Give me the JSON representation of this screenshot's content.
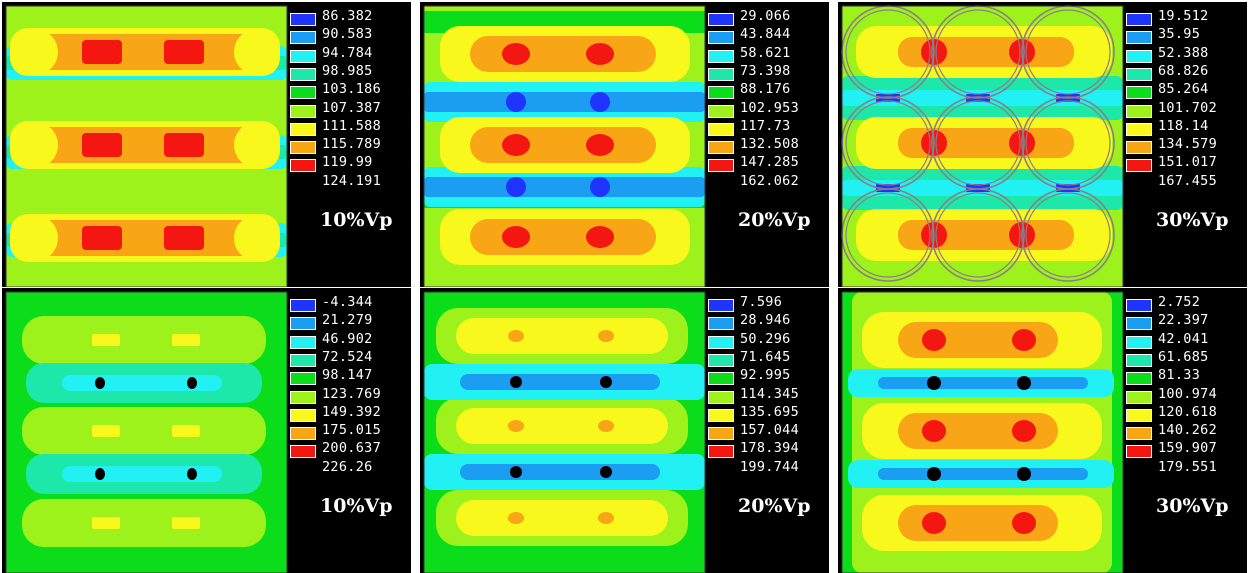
{
  "colors": [
    "#1f34ff",
    "#1b9df2",
    "#21f1f2",
    "#1ee8a9",
    "#0cdd1a",
    "#9ef21b",
    "#f8f81c",
    "#f8a616",
    "#f41610"
  ],
  "panels": [
    {
      "label": "10%Vp",
      "style": "a",
      "legend": [
        "86.382",
        "90.583",
        "94.784",
        "98.985",
        "103.186",
        "107.387",
        "111.588",
        "115.789",
        "119.99",
        "124.191"
      ]
    },
    {
      "label": "20%Vp",
      "style": "b",
      "legend": [
        "29.066",
        "43.844",
        "58.621",
        "73.398",
        "88.176",
        "102.953",
        "117.73",
        "132.508",
        "147.285",
        "162.062"
      ]
    },
    {
      "label": "30%Vp",
      "style": "c",
      "legend": [
        "19.512",
        "35.95",
        "52.388",
        "68.826",
        "85.264",
        "101.702",
        "118.14",
        "134.579",
        "151.017",
        "167.455"
      ]
    },
    {
      "label": "10%Vp",
      "style": "d",
      "legend": [
        "-4.344",
        "21.279",
        "46.902",
        "72.524",
        "98.147",
        "123.769",
        "149.392",
        "175.015",
        "200.637",
        "226.26"
      ]
    },
    {
      "label": "20%Vp",
      "style": "e",
      "legend": [
        "7.596",
        "28.946",
        "50.296",
        "71.645",
        "92.995",
        "114.345",
        "135.695",
        "157.044",
        "178.394",
        "199.744"
      ]
    },
    {
      "label": "30%Vp",
      "style": "f",
      "legend": [
        "2.752",
        "22.397",
        "42.041",
        "61.685",
        "81.33",
        "100.974",
        "120.618",
        "140.262",
        "159.907",
        "179.551"
      ]
    }
  ]
}
